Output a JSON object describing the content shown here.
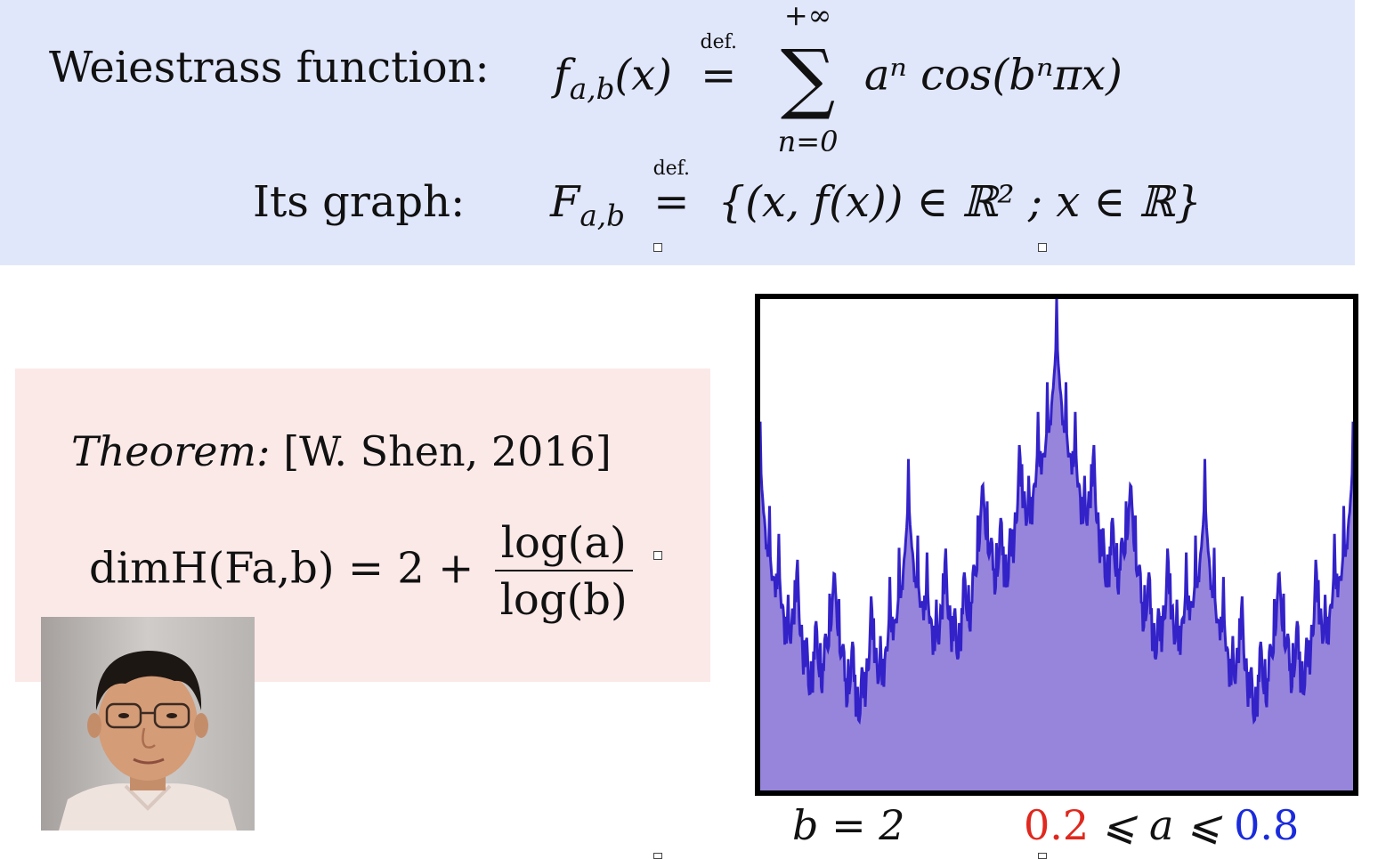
{
  "definition": {
    "function_label": "Weiestrass function:",
    "function_lhs": "f",
    "function_sub": "a,b",
    "function_arg": "(x)",
    "defeq_text": "def.",
    "sum_upper": "+∞",
    "sum_lower": "n=0",
    "sum_body": "aⁿ cos(bⁿπx)",
    "graph_label": "Its graph:",
    "graph_lhs": "F",
    "graph_sub": "a,b",
    "graph_set": "{(x, f(x)) ∈ ℝ² ; x ∈ ℝ}"
  },
  "theorem": {
    "title": "Theorem:",
    "citation": "[W. Shen, 2016]",
    "dim_lhs": "dimH(Fa,b) = 2 +",
    "numerator": "log(a)",
    "denominator": "log(b)"
  },
  "params": {
    "b_text": "b = 2",
    "a_low": "0.2",
    "a_mid": " ⩽ a ⩽ ",
    "a_high": "0.8",
    "colors": {
      "a_low": "#e0281e",
      "a_high": "#1a2bdc"
    }
  },
  "graph": {
    "fill": "#9785dc",
    "line": "#3322c8",
    "frame": "#000000",
    "b": 2,
    "a": 0.8
  },
  "photo": {
    "icon": "portrait-photo"
  }
}
